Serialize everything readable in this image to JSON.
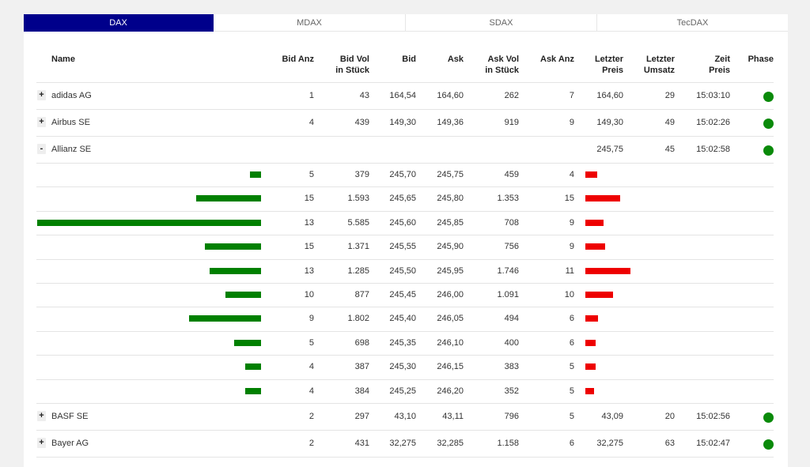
{
  "tabs": [
    {
      "label": "DAX",
      "active": true
    },
    {
      "label": "MDAX",
      "active": false
    },
    {
      "label": "SDAX",
      "active": false
    },
    {
      "label": "TecDAX",
      "active": false
    }
  ],
  "headers": {
    "name": "Name",
    "bid_anz": "Bid Anz",
    "bid_vol_1": "Bid Vol",
    "bid_vol_2": "in Stück",
    "bid": "Bid",
    "ask": "Ask",
    "ask_vol_1": "Ask Vol",
    "ask_vol_2": "in Stück",
    "ask_anz": "Ask Anz",
    "letzter_preis_1": "Letzter",
    "letzter_preis_2": "Preis",
    "letzter_umsatz_1": "Letzter",
    "letzter_umsatz_2": "Umsatz",
    "zeit_preis_1": "Zeit",
    "zeit_preis_2": "Preis",
    "phase": "Phase"
  },
  "stocks": [
    {
      "toggle": "+",
      "name": "adidas AG",
      "bid_anz": "1",
      "bid_vol": "43",
      "bid": "164,54",
      "ask": "164,60",
      "ask_vol": "262",
      "ask_anz": "7",
      "letzter_preis": "164,60",
      "letzter_umsatz": "29",
      "zeit": "15:03:10",
      "phase_color": "#0a8a0a"
    },
    {
      "toggle": "+",
      "name": "Airbus SE",
      "bid_anz": "4",
      "bid_vol": "439",
      "bid": "149,30",
      "ask": "149,36",
      "ask_vol": "919",
      "ask_anz": "9",
      "letzter_preis": "149,30",
      "letzter_umsatz": "49",
      "zeit": "15:02:26",
      "phase_color": "#0a8a0a"
    },
    {
      "toggle": "-",
      "name": "Allianz SE",
      "bid_anz": "",
      "bid_vol": "",
      "bid": "",
      "ask": "",
      "ask_vol": "",
      "ask_anz": "",
      "letzter_preis": "245,75",
      "letzter_umsatz": "45",
      "zeit": "15:02:58",
      "phase_color": "#0a8a0a"
    }
  ],
  "orderbook": [
    {
      "bid_level": 0.05,
      "bid_anz": "5",
      "bid_vol": "379",
      "bid": "245,70",
      "ask": "245,75",
      "ask_vol": "459",
      "ask_anz": "4",
      "ask_level": 0.26
    },
    {
      "bid_level": 0.29,
      "bid_anz": "15",
      "bid_vol": "1.593",
      "bid": "245,65",
      "ask": "245,80",
      "ask_vol": "1.353",
      "ask_anz": "15",
      "ask_level": 0.78
    },
    {
      "bid_level": 1.0,
      "bid_anz": "13",
      "bid_vol": "5.585",
      "bid": "245,60",
      "ask": "245,85",
      "ask_vol": "708",
      "ask_anz": "9",
      "ask_level": 0.41
    },
    {
      "bid_level": 0.25,
      "bid_anz": "15",
      "bid_vol": "1.371",
      "bid": "245,55",
      "ask": "245,90",
      "ask_vol": "756",
      "ask_anz": "9",
      "ask_level": 0.43
    },
    {
      "bid_level": 0.23,
      "bid_anz": "13",
      "bid_vol": "1.285",
      "bid": "245,50",
      "ask": "245,95",
      "ask_vol": "1.746",
      "ask_anz": "11",
      "ask_level": 1.0
    },
    {
      "bid_level": 0.16,
      "bid_anz": "10",
      "bid_vol": "877",
      "bid": "245,45",
      "ask": "246,00",
      "ask_vol": "1.091",
      "ask_anz": "10",
      "ask_level": 0.62
    },
    {
      "bid_level": 0.32,
      "bid_anz": "9",
      "bid_vol": "1.802",
      "bid": "245,40",
      "ask": "246,05",
      "ask_vol": "494",
      "ask_anz": "6",
      "ask_level": 0.28
    },
    {
      "bid_level": 0.12,
      "bid_anz": "5",
      "bid_vol": "698",
      "bid": "245,35",
      "ask": "246,10",
      "ask_vol": "400",
      "ask_anz": "6",
      "ask_level": 0.23
    },
    {
      "bid_level": 0.07,
      "bid_anz": "4",
      "bid_vol": "387",
      "bid": "245,30",
      "ask": "246,15",
      "ask_vol": "383",
      "ask_anz": "5",
      "ask_level": 0.22
    },
    {
      "bid_level": 0.07,
      "bid_anz": "4",
      "bid_vol": "384",
      "bid": "245,25",
      "ask": "246,20",
      "ask_vol": "352",
      "ask_anz": "5",
      "ask_level": 0.2
    }
  ],
  "stocks_after": [
    {
      "toggle": "+",
      "name": "BASF SE",
      "bid_anz": "2",
      "bid_vol": "297",
      "bid": "43,10",
      "ask": "43,11",
      "ask_vol": "796",
      "ask_anz": "5",
      "letzter_preis": "43,09",
      "letzter_umsatz": "20",
      "zeit": "15:02:56",
      "phase_color": "#0a8a0a"
    },
    {
      "toggle": "+",
      "name": "Bayer AG",
      "bid_anz": "2",
      "bid_vol": "431",
      "bid": "32,275",
      "ask": "32,285",
      "ask_vol": "1.158",
      "ask_anz": "6",
      "letzter_preis": "32,275",
      "letzter_umsatz": "63",
      "zeit": "15:02:47",
      "phase_color": "#0a8a0a"
    }
  ],
  "colors": {
    "tab_active": "#00008b",
    "bid_bar": "#008000",
    "ask_bar": "#ee0000",
    "phase_open": "#0a8a0a"
  }
}
